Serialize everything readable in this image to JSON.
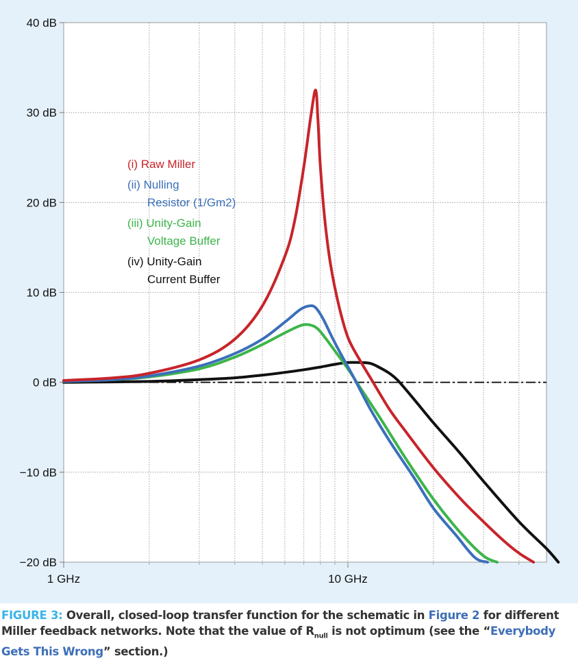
{
  "chart_data": {
    "type": "line",
    "x_scale": "log",
    "xlim_hz": [
      1000000000.0,
      70000000000.0
    ],
    "ylim_db": [
      -20,
      40
    ],
    "ylabel_unit": "dB",
    "y_ticks": [
      "40 dB",
      "30 dB",
      "20 dB",
      "10 dB",
      "0 dB",
      "−10 dB",
      "−20 dB"
    ],
    "x_ticks": [
      "1 GHz",
      "10 GHz"
    ],
    "grid": "log-minor dotted",
    "reference_line": {
      "y": 0,
      "style": "dash-dot"
    },
    "series": [
      {
        "name": "(i) Raw Miller",
        "color": "#c8242b",
        "x": [
          1000000000.0,
          1500000000.0,
          2000000000.0,
          3000000000.0,
          4000000000.0,
          5000000000.0,
          6000000000.0,
          6500000000.0,
          7000000000.0,
          7400000000.0,
          7700000000.0,
          7850000000.0,
          8000000000.0,
          8300000000.0,
          8700000000.0,
          9300000000.0,
          10000000000.0,
          11000000000.0,
          12000000000.0,
          14000000000.0,
          16000000000.0,
          20000000000.0,
          25000000000.0,
          30000000000.0,
          35000000000.0,
          40000000000.0,
          45000000000.0
        ],
        "y": [
          0.2,
          0.5,
          1.0,
          2.5,
          4.8,
          8.5,
          14,
          18,
          24,
          29.5,
          32.5,
          29,
          24,
          18,
          13,
          8.5,
          5,
          2.5,
          0.5,
          -3,
          -5.5,
          -9.5,
          -13,
          -15.5,
          -17.5,
          -19,
          -20
        ]
      },
      {
        "name": "(ii) Nulling Resistor (1/Gm2)",
        "color": "#3b6fbb",
        "x": [
          1000000000.0,
          1500000000.0,
          2000000000.0,
          3000000000.0,
          4000000000.0,
          5000000000.0,
          6000000000.0,
          6800000000.0,
          7300000000.0,
          7700000000.0,
          8200000000.0,
          8800000000.0,
          9500000000.0,
          10500000000.0,
          12000000000.0,
          14000000000.0,
          17000000000.0,
          20000000000.0,
          24000000000.0,
          28000000000.0,
          31000000000.0
        ],
        "y": [
          0.1,
          0.3,
          0.7,
          1.8,
          3.2,
          4.8,
          6.7,
          8.1,
          8.5,
          8.3,
          7,
          5,
          3,
          0.5,
          -3,
          -6.5,
          -10.5,
          -14,
          -17,
          -19.5,
          -20
        ]
      },
      {
        "name": "(iii) Unity-Gain Voltage Buffer",
        "color": "#3db54a",
        "x": [
          1000000000.0,
          1500000000.0,
          2000000000.0,
          3000000000.0,
          4000000000.0,
          5000000000.0,
          6000000000.0,
          6800000000.0,
          7300000000.0,
          7800000000.0,
          8300000000.0,
          9000000000.0,
          10000000000.0,
          11000000000.0,
          13000000000.0,
          16000000000.0,
          20000000000.0,
          25000000000.0,
          30000000000.0,
          33500000000.0
        ],
        "y": [
          0.1,
          0.3,
          0.6,
          1.5,
          2.8,
          4.2,
          5.5,
          6.3,
          6.4,
          6,
          5,
          3.5,
          1.5,
          -0.5,
          -4,
          -8.5,
          -13,
          -16.8,
          -19.3,
          -20
        ]
      },
      {
        "name": "(iv) Unity-Gain Current Buffer",
        "color": "#111111",
        "x": [
          1000000000.0,
          2000000000.0,
          3000000000.0,
          4000000000.0,
          5000000000.0,
          6000000000.0,
          7000000000.0,
          8000000000.0,
          9000000000.0,
          10000000000.0,
          11000000000.0,
          12000000000.0,
          13000000000.0,
          14000000000.0,
          15000000000.0,
          17000000000.0,
          20000000000.0,
          25000000000.0,
          30000000000.0,
          40000000000.0,
          50000000000.0,
          55000000000.0
        ],
        "y": [
          0,
          0.1,
          0.3,
          0.5,
          0.8,
          1.1,
          1.4,
          1.7,
          2.0,
          2.2,
          2.2,
          2.1,
          1.6,
          1.0,
          0.2,
          -1.8,
          -4.5,
          -8,
          -11,
          -15.5,
          -18.5,
          -20
        ]
      }
    ],
    "legend": [
      {
        "color": "#c8242b",
        "lines": [
          "(i) Raw Miller"
        ]
      },
      {
        "color": "#3b6fbb",
        "lines": [
          "(ii) Nulling",
          "Resistor (1/Gm2)"
        ]
      },
      {
        "color": "#3db54a",
        "lines": [
          "(iii) Unity-Gain",
          "Voltage Buffer"
        ]
      },
      {
        "color": "#111111",
        "lines": [
          "(iv) Unity-Gain",
          "Current Buffer"
        ]
      }
    ]
  },
  "caption": {
    "label": "FIGURE 3:",
    "part1": " Overall, closed-loop transfer function for the schematic in ",
    "link1": "Figure 2",
    "part2": " for different Miller feedback networks. Note that the value of R",
    "subscript": "null",
    "part3": " is not optimum (see the “",
    "link2": "Everybody Gets This Wrong",
    "part4": "” section.)"
  }
}
